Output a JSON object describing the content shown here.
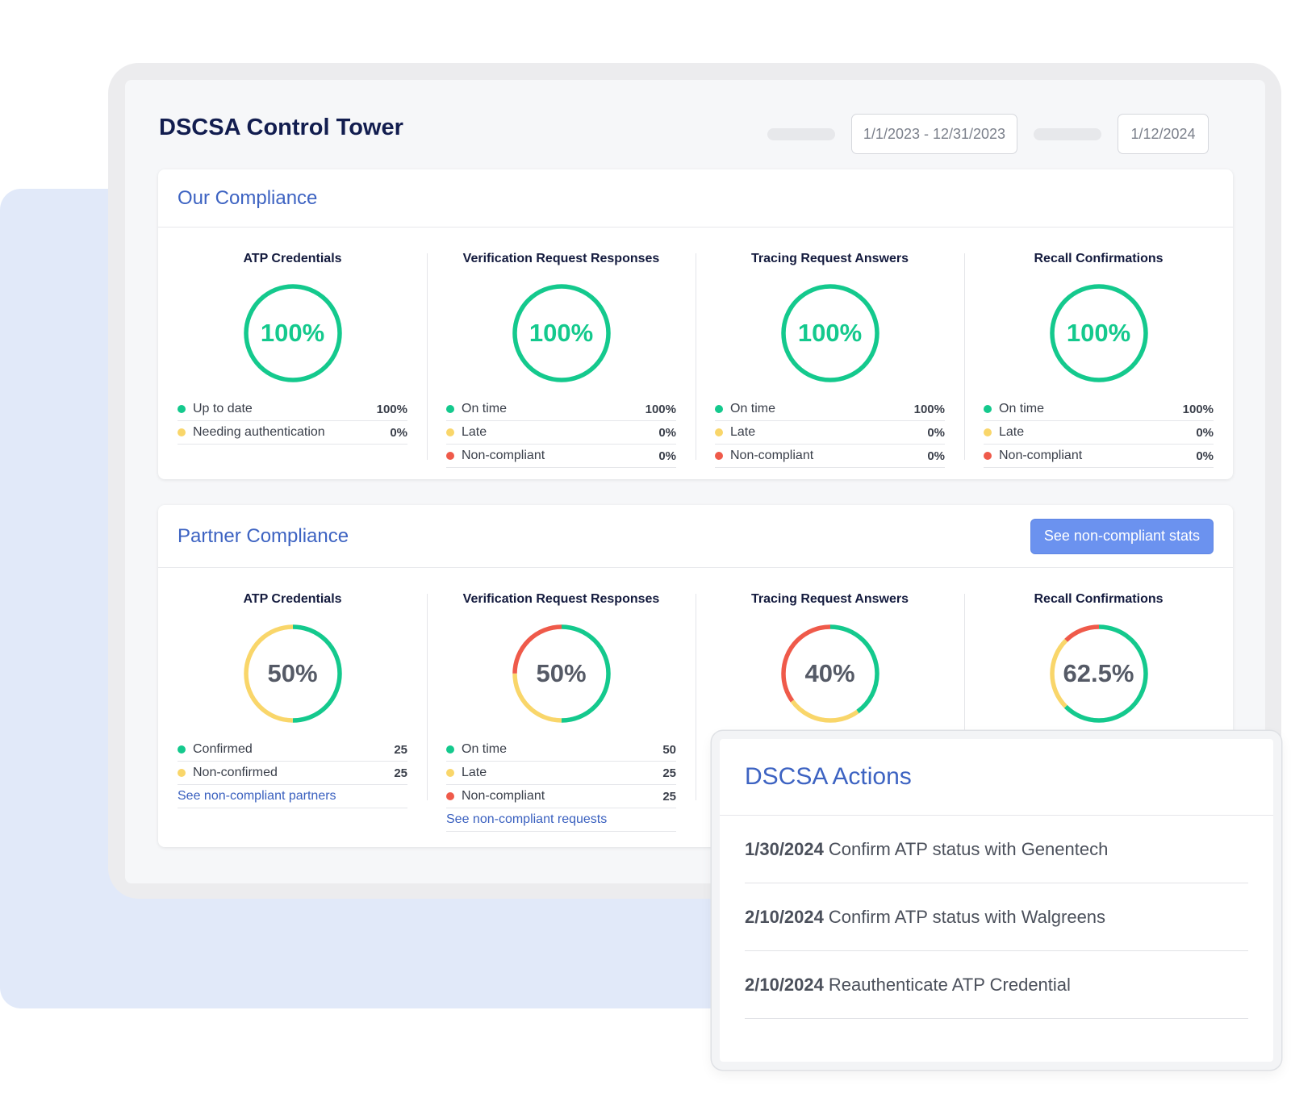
{
  "app": {
    "title": "DSCSA Control Tower",
    "date_range": "1/1/2023 - 12/31/2023",
    "date": "1/12/2024"
  },
  "colors": {
    "green": "#14c98d",
    "yellow": "#f9d66a",
    "red": "#ef5a4a",
    "accent_blue": "#3d63c2",
    "button_blue": "#6b92ef"
  },
  "our_compliance": {
    "title": "Our Compliance",
    "columns": [
      {
        "title": "ATP Credentials",
        "value_label": "100%",
        "green_fraction": 1.0,
        "yellow_fraction": 0.0,
        "red_fraction": 0.0,
        "rows": [
          {
            "label": "Up to date",
            "value": "100%",
            "color": "green"
          },
          {
            "label": "Needing authentication",
            "value": "0%",
            "color": "yellow"
          }
        ]
      },
      {
        "title": "Verification Request Responses",
        "value_label": "100%",
        "green_fraction": 1.0,
        "yellow_fraction": 0.0,
        "red_fraction": 0.0,
        "rows": [
          {
            "label": "On time",
            "value": "100%",
            "color": "green"
          },
          {
            "label": "Late",
            "value": "0%",
            "color": "yellow"
          },
          {
            "label": "Non-compliant",
            "value": "0%",
            "color": "red"
          }
        ]
      },
      {
        "title": "Tracing Request Answers",
        "value_label": "100%",
        "green_fraction": 1.0,
        "yellow_fraction": 0.0,
        "red_fraction": 0.0,
        "rows": [
          {
            "label": "On time",
            "value": "100%",
            "color": "green"
          },
          {
            "label": "Late",
            "value": "0%",
            "color": "yellow"
          },
          {
            "label": "Non-compliant",
            "value": "0%",
            "color": "red"
          }
        ]
      },
      {
        "title": "Recall Confirmations",
        "value_label": "100%",
        "green_fraction": 1.0,
        "yellow_fraction": 0.0,
        "red_fraction": 0.0,
        "rows": [
          {
            "label": "On time",
            "value": "100%",
            "color": "green"
          },
          {
            "label": "Late",
            "value": "0%",
            "color": "yellow"
          },
          {
            "label": "Non-compliant",
            "value": "0%",
            "color": "red"
          }
        ]
      }
    ]
  },
  "partner_compliance": {
    "title": "Partner Compliance",
    "button_label": "See non-compliant stats",
    "columns": [
      {
        "title": "ATP Credentials",
        "value_label": "50%",
        "green_fraction": 0.5,
        "yellow_fraction": 0.5,
        "red_fraction": 0.0,
        "rows": [
          {
            "label": "Confirmed",
            "value": "25",
            "color": "green"
          },
          {
            "label": "Non-confirmed",
            "value": "25",
            "color": "yellow"
          }
        ],
        "link": "See non-compliant partners"
      },
      {
        "title": "Verification Request Responses",
        "value_label": "50%",
        "green_fraction": 0.5,
        "yellow_fraction": 0.25,
        "red_fraction": 0.25,
        "rows": [
          {
            "label": "On time",
            "value": "50",
            "color": "green"
          },
          {
            "label": "Late",
            "value": "25",
            "color": "yellow"
          },
          {
            "label": "Non-compliant",
            "value": "25",
            "color": "red"
          }
        ],
        "link": "See non-compliant requests"
      },
      {
        "title": "Tracing Request Answers",
        "value_label": "40%",
        "green_fraction": 0.4,
        "yellow_fraction": 0.25,
        "red_fraction": 0.35
      },
      {
        "title": "Recall Confirmations",
        "value_label": "62.5%",
        "green_fraction": 0.625,
        "yellow_fraction": 0.25,
        "red_fraction": 0.125
      }
    ]
  },
  "actions": {
    "title": "DSCSA Actions",
    "items": [
      {
        "date": "1/30/2024",
        "text": "Confirm ATP status with Genentech"
      },
      {
        "date": "2/10/2024",
        "text": "Confirm ATP status with Walgreens"
      },
      {
        "date": "2/10/2024",
        "text": "Reauthenticate ATP Credential"
      }
    ]
  }
}
